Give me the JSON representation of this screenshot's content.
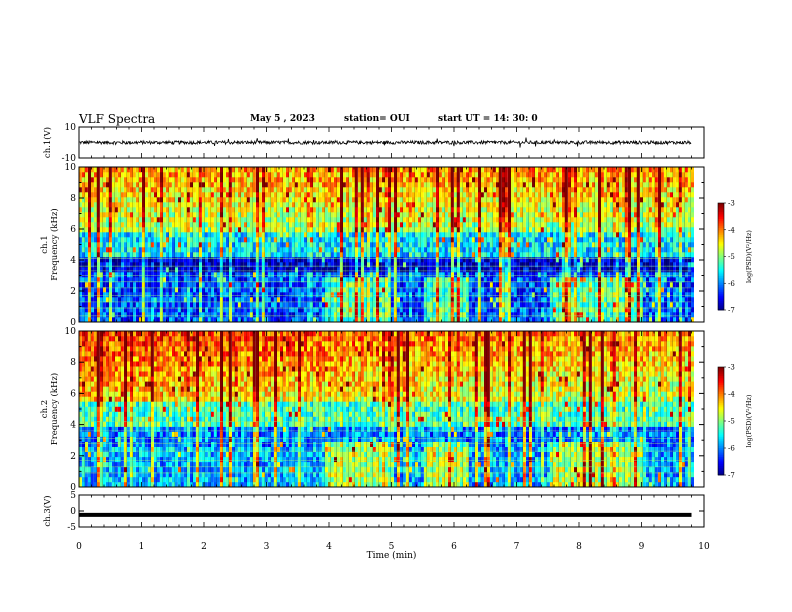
{
  "header": {
    "title": "VLF Spectra",
    "date": "May 5  , 2023",
    "station": "station= OUI",
    "start": "start  UT  =   14: 30: 0"
  },
  "chart_data": [
    {
      "type": "line",
      "ylabel": "ch.1(V)",
      "ylim": [
        -10,
        10
      ],
      "yticks": [
        "10",
        "-10"
      ],
      "xlim": [
        0,
        10
      ],
      "note_values": "noisy waveform centered near 0 V with amplitude about ±1 V",
      "series": [
        {
          "x": [
            0,
            2,
            4,
            6,
            8,
            9.8
          ],
          "values": [
            0,
            0,
            0,
            0,
            0,
            0
          ]
        }
      ]
    },
    {
      "type": "heatmap",
      "ylabel_line1": "ch.1",
      "ylabel_line2": "Frequency (kHz)",
      "ylim": [
        0,
        10
      ],
      "yticks": [
        "0",
        "2",
        "4",
        "6",
        "8",
        "10"
      ],
      "xlim": [
        0,
        10
      ],
      "data_end_min": 9.8,
      "colorbar": {
        "label": "log(PSD)(V²/Hz)",
        "range": [
          -7,
          -3
        ],
        "ticks": [
          "-3",
          "-4",
          "-5",
          "-6",
          "-7"
        ]
      }
    },
    {
      "type": "heatmap",
      "ylabel_line1": "ch.2",
      "ylabel_line2": "Frequency (kHz)",
      "ylim": [
        0,
        10
      ],
      "yticks": [
        "0",
        "2",
        "4",
        "6",
        "8",
        "10"
      ],
      "xlim": [
        0,
        10
      ],
      "data_end_min": 9.8,
      "colorbar": {
        "label": "log(PSD)(V²/Hz)",
        "range": [
          -7,
          -3
        ],
        "ticks": [
          "-3",
          "-4",
          "-5",
          "-6",
          "-7"
        ]
      }
    },
    {
      "type": "line",
      "ylabel": "ch.3(V)",
      "ylim": [
        -5,
        5
      ],
      "yticks": [
        "5",
        "0",
        "-5"
      ],
      "xlim": [
        0,
        10
      ],
      "series": [
        {
          "x": [
            0,
            9.8
          ],
          "values": [
            -1.2,
            -1.2
          ]
        }
      ]
    }
  ],
  "xaxis": {
    "label": "Time (min)",
    "ticks": [
      "0",
      "1",
      "2",
      "3",
      "4",
      "5",
      "6",
      "7",
      "8",
      "9",
      "10"
    ]
  },
  "colors": {
    "black": "#000000",
    "background": "#ffffff"
  }
}
